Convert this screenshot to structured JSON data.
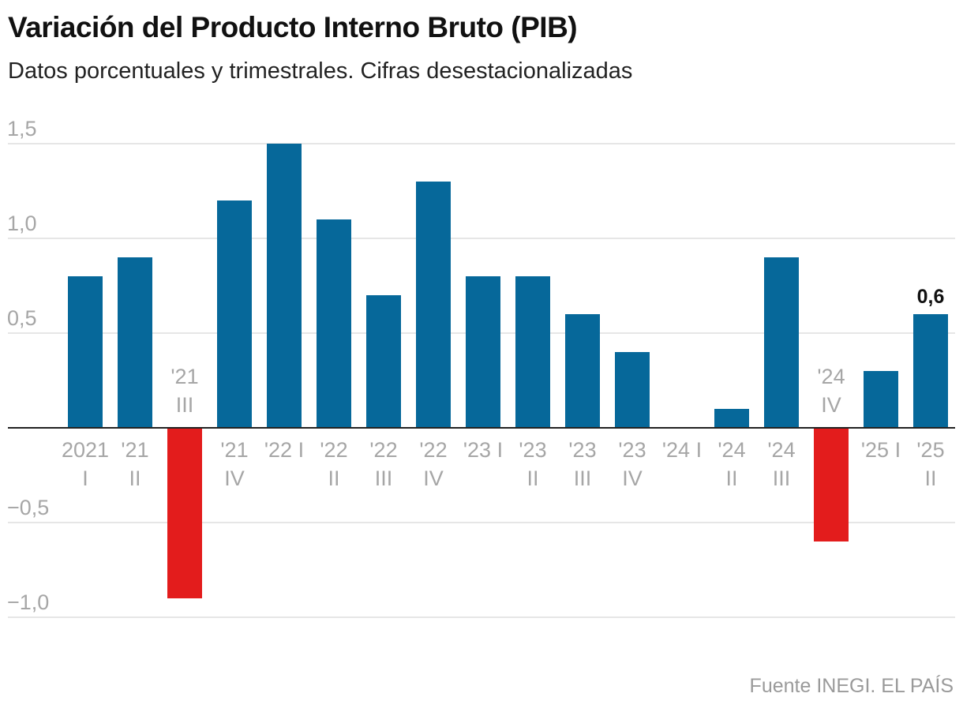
{
  "header": {
    "title": "Variación del Producto Interno Bruto (PIB)",
    "subtitle": "Datos porcentuales y trimestrales. Cifras desestacionalizadas"
  },
  "footer": {
    "source": "Fuente INEGI. EL PAÍS"
  },
  "colors": {
    "positive": "#06689a",
    "negative": "#e31c1c",
    "grid": "#dddddd",
    "zero_line": "#222222"
  },
  "chart_data": {
    "type": "bar",
    "title": "Variación del Producto Interno Bruto (PIB)",
    "subtitle": "Datos porcentuales y trimestrales. Cifras desestacionalizadas",
    "xlabel": "",
    "ylabel": "",
    "ylim": [
      -1.0,
      1.5
    ],
    "yticks": [
      1.5,
      1.0,
      0.5,
      -0.5,
      -1.0
    ],
    "ytick_labels": [
      "1,5",
      "1,0",
      "0,5",
      "−0,5",
      "−1,0"
    ],
    "grid": true,
    "legend": "none",
    "categories": [
      [
        "2021",
        "I"
      ],
      [
        "'21",
        "II"
      ],
      [
        "'21",
        "III"
      ],
      [
        "'21",
        "IV"
      ],
      [
        "'22 I"
      ],
      [
        "'22",
        "II"
      ],
      [
        "'22",
        "III"
      ],
      [
        "'22",
        "IV"
      ],
      [
        "'23 I"
      ],
      [
        "'23",
        "II"
      ],
      [
        "'23",
        "III"
      ],
      [
        "'23",
        "IV"
      ],
      [
        "'24 I"
      ],
      [
        "'24",
        "II"
      ],
      [
        "'24",
        "III"
      ],
      [
        "'24",
        "IV"
      ],
      [
        "'25 I"
      ],
      [
        "'25",
        "II"
      ]
    ],
    "values": [
      0.8,
      0.9,
      -0.9,
      1.2,
      1.5,
      1.1,
      0.7,
      1.3,
      0.8,
      0.8,
      0.6,
      0.4,
      0.0,
      0.1,
      0.9,
      -0.6,
      0.3,
      0.6
    ],
    "annotations": [
      {
        "index": 17,
        "text": "0,6"
      }
    ]
  }
}
